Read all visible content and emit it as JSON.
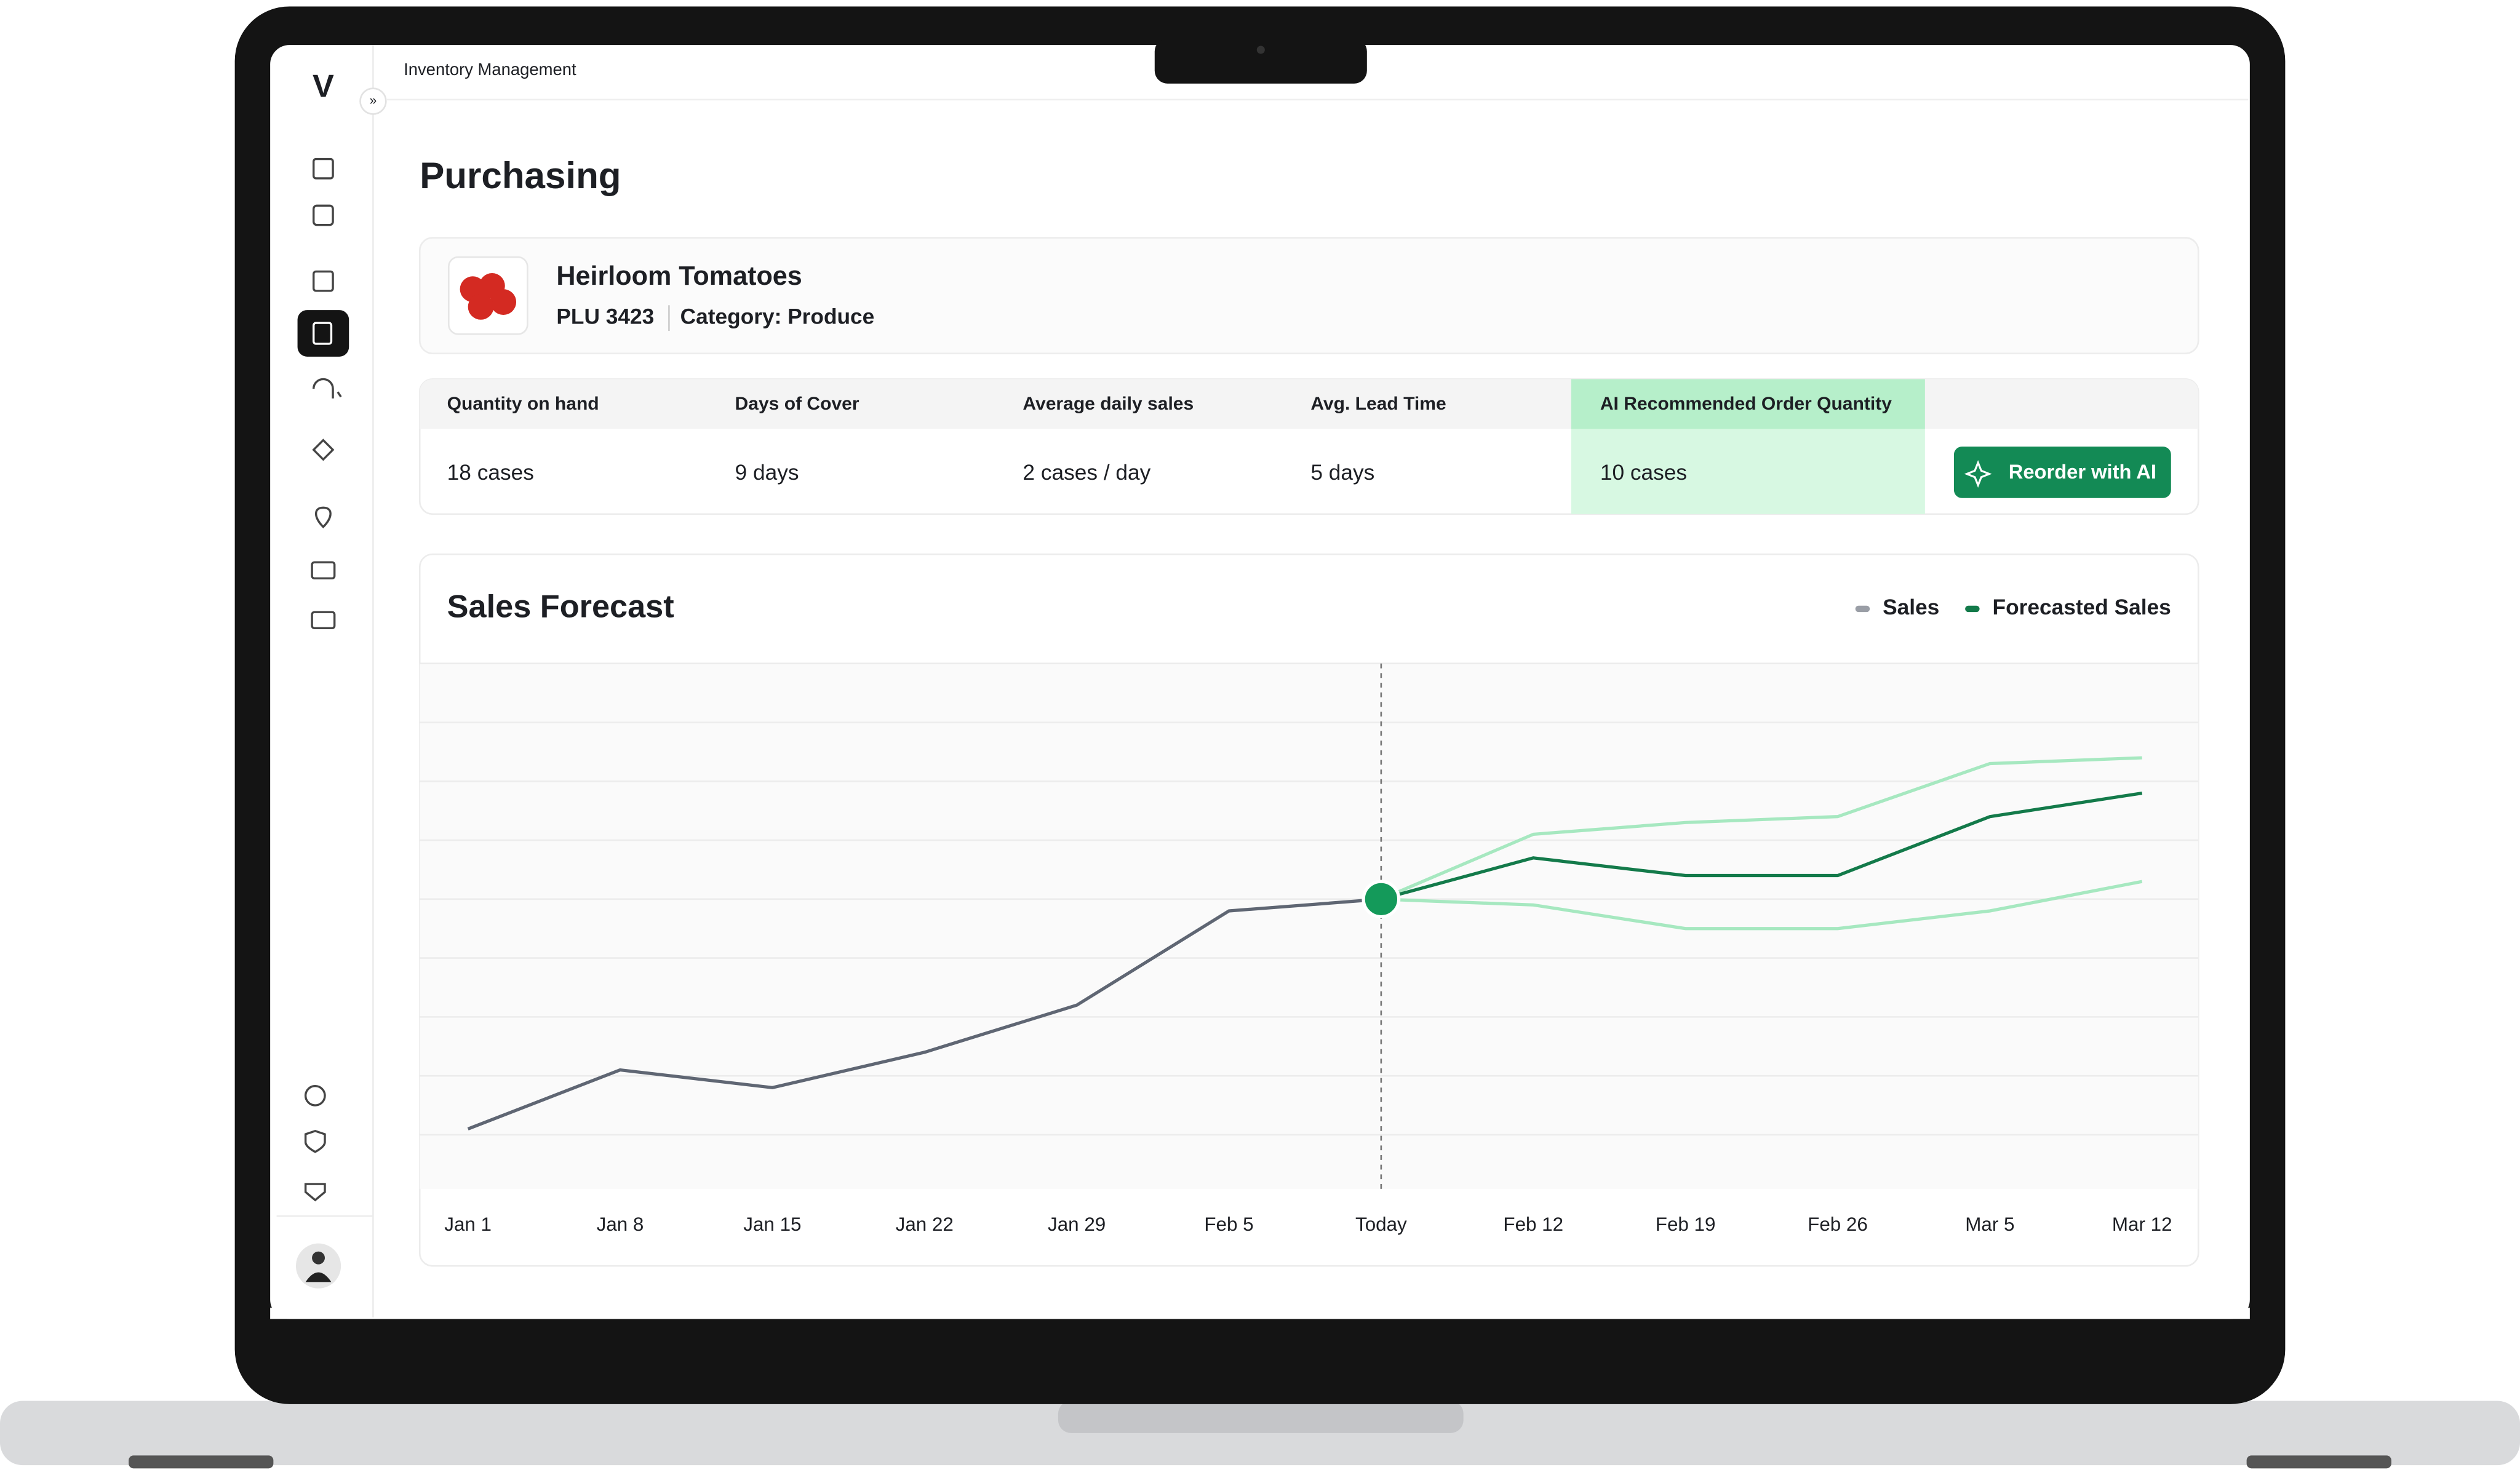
{
  "app": {
    "logo": "V",
    "breadcrumb": "Inventory Management",
    "page_title": "Purchasing"
  },
  "product": {
    "name": "Heirloom Tomatoes",
    "plu": "PLU 3423",
    "category": "Category: Produce"
  },
  "metrics": [
    {
      "label": "Quantity on hand",
      "value": "18 cases"
    },
    {
      "label": "Days of Cover",
      "value": "9 days"
    },
    {
      "label": "Average daily sales",
      "value": "2 cases / day"
    },
    {
      "label": "Avg. Lead Time",
      "value": "5 days"
    },
    {
      "label": "AI Recommended Order Quantity",
      "value": "10 cases"
    }
  ],
  "reorder_button": "Reorder with AI",
  "chart_data": {
    "type": "line",
    "title": "Sales Forecast",
    "categories": [
      "Jan 1",
      "Jan 8",
      "Jan 15",
      "Jan 22",
      "Jan 29",
      "Feb 5",
      "Today",
      "Feb 12",
      "Feb 19",
      "Feb 26",
      "Mar 5",
      "Mar 12"
    ],
    "series": [
      {
        "name": "Sales",
        "color": "#5f6673",
        "values": [
          1.1,
          2.1,
          1.8,
          2.4,
          3.2,
          4.8,
          5.0,
          null,
          null,
          null,
          null,
          null
        ]
      },
      {
        "name": "Forecasted Sales",
        "color": "#137a4a",
        "values": [
          null,
          null,
          null,
          null,
          null,
          null,
          5.0,
          5.7,
          5.4,
          5.4,
          6.4,
          6.8
        ]
      }
    ],
    "band": {
      "color": "#a6e8c0",
      "upper": [
        null,
        null,
        null,
        null,
        null,
        null,
        5.0,
        6.1,
        6.3,
        6.4,
        7.3,
        7.4
      ],
      "lower": [
        null,
        null,
        null,
        null,
        null,
        null,
        5.0,
        4.9,
        4.5,
        4.5,
        4.8,
        5.3
      ]
    },
    "ylim": [
      0,
      9
    ],
    "ygrid": [
      1,
      2,
      3,
      4,
      5,
      6,
      7,
      8
    ],
    "grid": true
  }
}
